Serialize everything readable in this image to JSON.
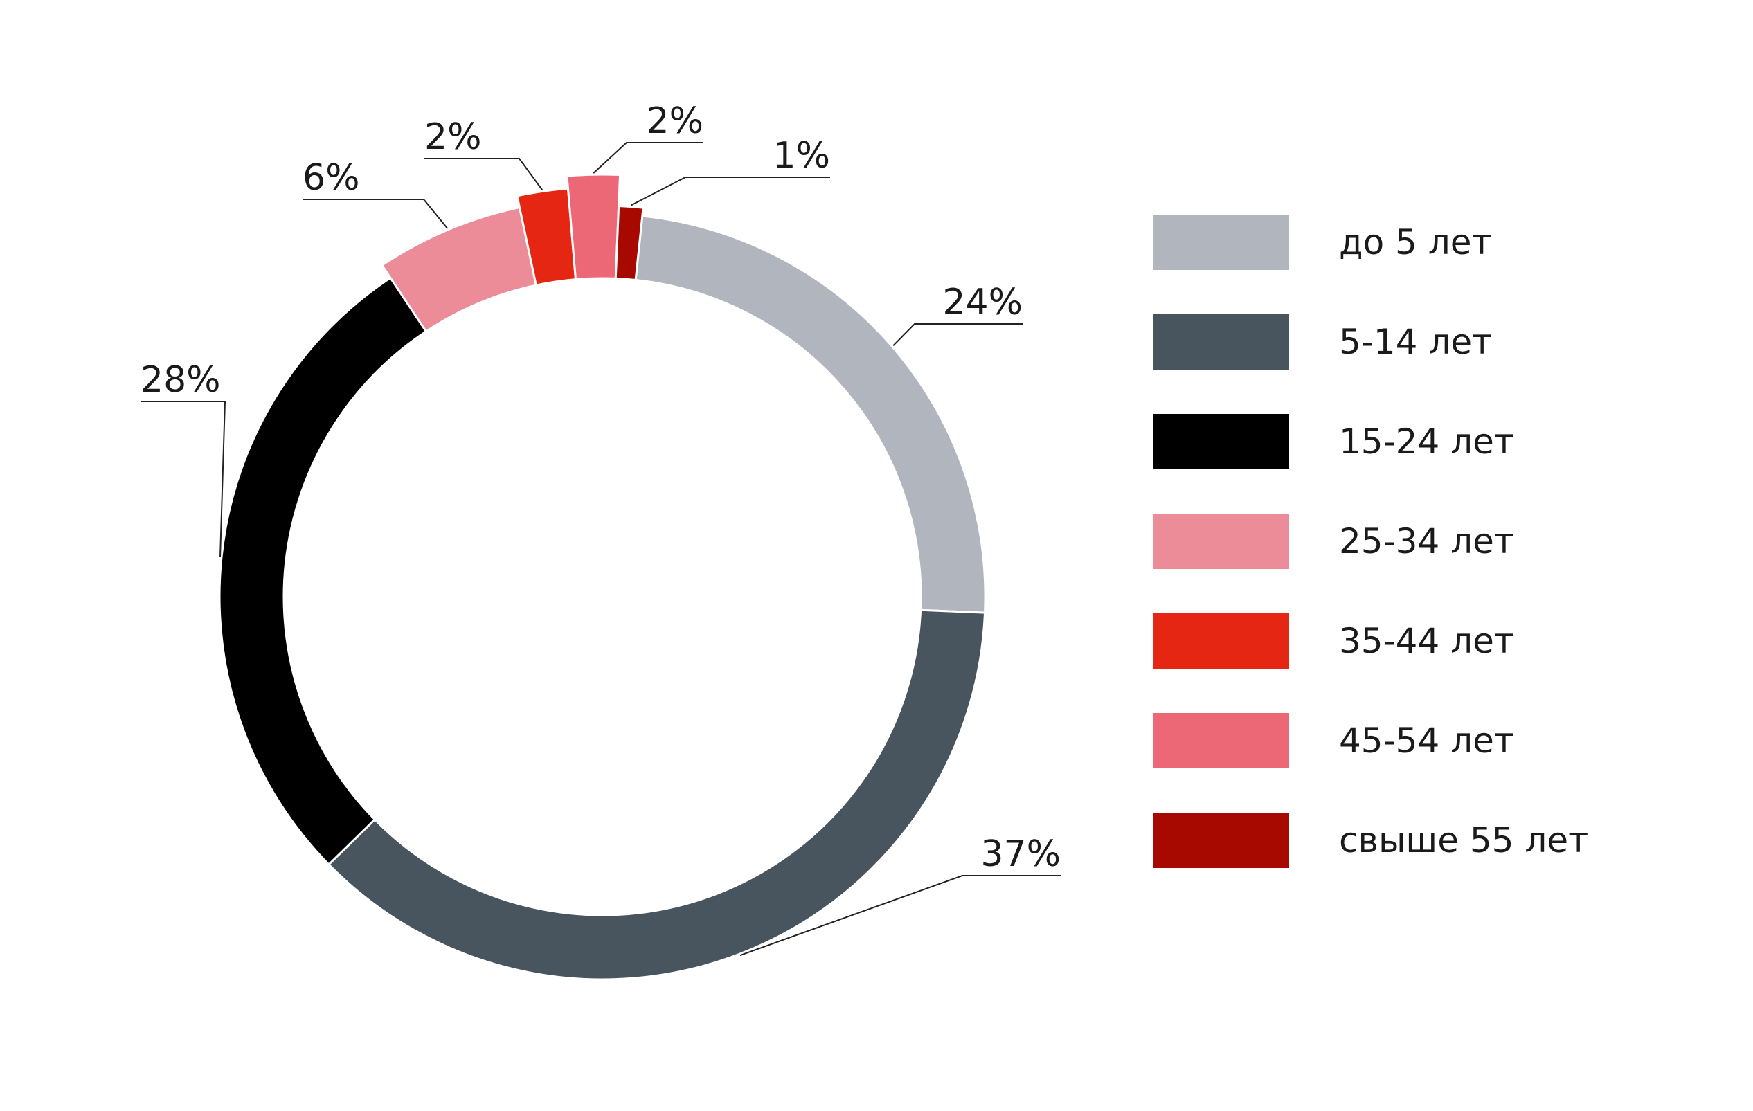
{
  "chart_data": {
    "type": "pie",
    "variant": "donut",
    "title": "",
    "legend_position": "right",
    "segments": [
      {
        "name": "до 5 лет",
        "value": 24,
        "label": "24%",
        "color": "#b0b5be"
      },
      {
        "name": "5-14 лет",
        "value": 37,
        "label": "37%",
        "color": "#48545e"
      },
      {
        "name": "15-24 лет",
        "value": 28,
        "label": "28%",
        "color": "#000000"
      },
      {
        "name": "25-34 лет",
        "value": 6,
        "label": "6%",
        "color": "#eb8c98"
      },
      {
        "name": "35-44 лет",
        "value": 2,
        "label": "2%",
        "color": "#e42612"
      },
      {
        "name": "45-54 лет",
        "value": 2,
        "label": "2%",
        "color": "#ec6876"
      },
      {
        "name": "свыше 55 лет",
        "value": 1,
        "label": "1%",
        "color": "#a70800"
      }
    ]
  }
}
